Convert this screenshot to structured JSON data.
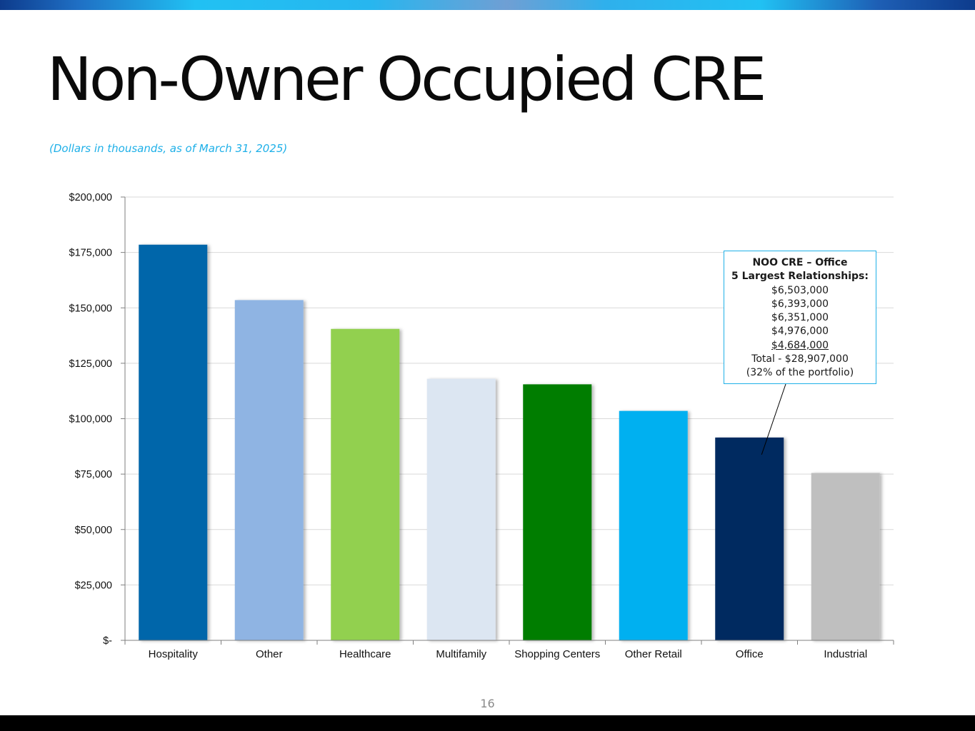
{
  "slide": {
    "title": "Non-Owner Occupied CRE",
    "subtitle": "(Dollars in thousands, as of March 31, 2025)",
    "page_number": "16"
  },
  "callout": {
    "heading_line1": "NOO CRE – Office",
    "heading_line2": "5 Largest Relationships:",
    "values": [
      "$6,503,000",
      "$6,393,000",
      "$6,351,000",
      "$4,976,000",
      "$4,684,000"
    ],
    "total": "Total - $28,907,000",
    "note": "(32% of the portfolio)",
    "points_to": "Office"
  },
  "chart_data": {
    "type": "bar",
    "categories": [
      "Hospitality",
      "Other",
      "Healthcare",
      "Multifamily",
      "Shopping Centers",
      "Other Retail",
      "Office",
      "Industrial"
    ],
    "values": [
      178500,
      153500,
      140500,
      118000,
      115500,
      103500,
      91500,
      75500
    ],
    "colors": [
      "#0066aa",
      "#8fb4e3",
      "#92d050",
      "#dce6f2",
      "#007d00",
      "#00b0f0",
      "#002c60",
      "#bfbfbf"
    ],
    "ylim": [
      0,
      200000
    ],
    "yticks": [
      0,
      25000,
      50000,
      75000,
      100000,
      125000,
      150000,
      175000,
      200000
    ],
    "ytick_labels": [
      "$-",
      "$25,000",
      "$50,000",
      "$75,000",
      "$100,000",
      "$125,000",
      "$150,000",
      "$175,000",
      "$200,000"
    ],
    "grid": true,
    "xlabel": "",
    "ylabel": ""
  }
}
